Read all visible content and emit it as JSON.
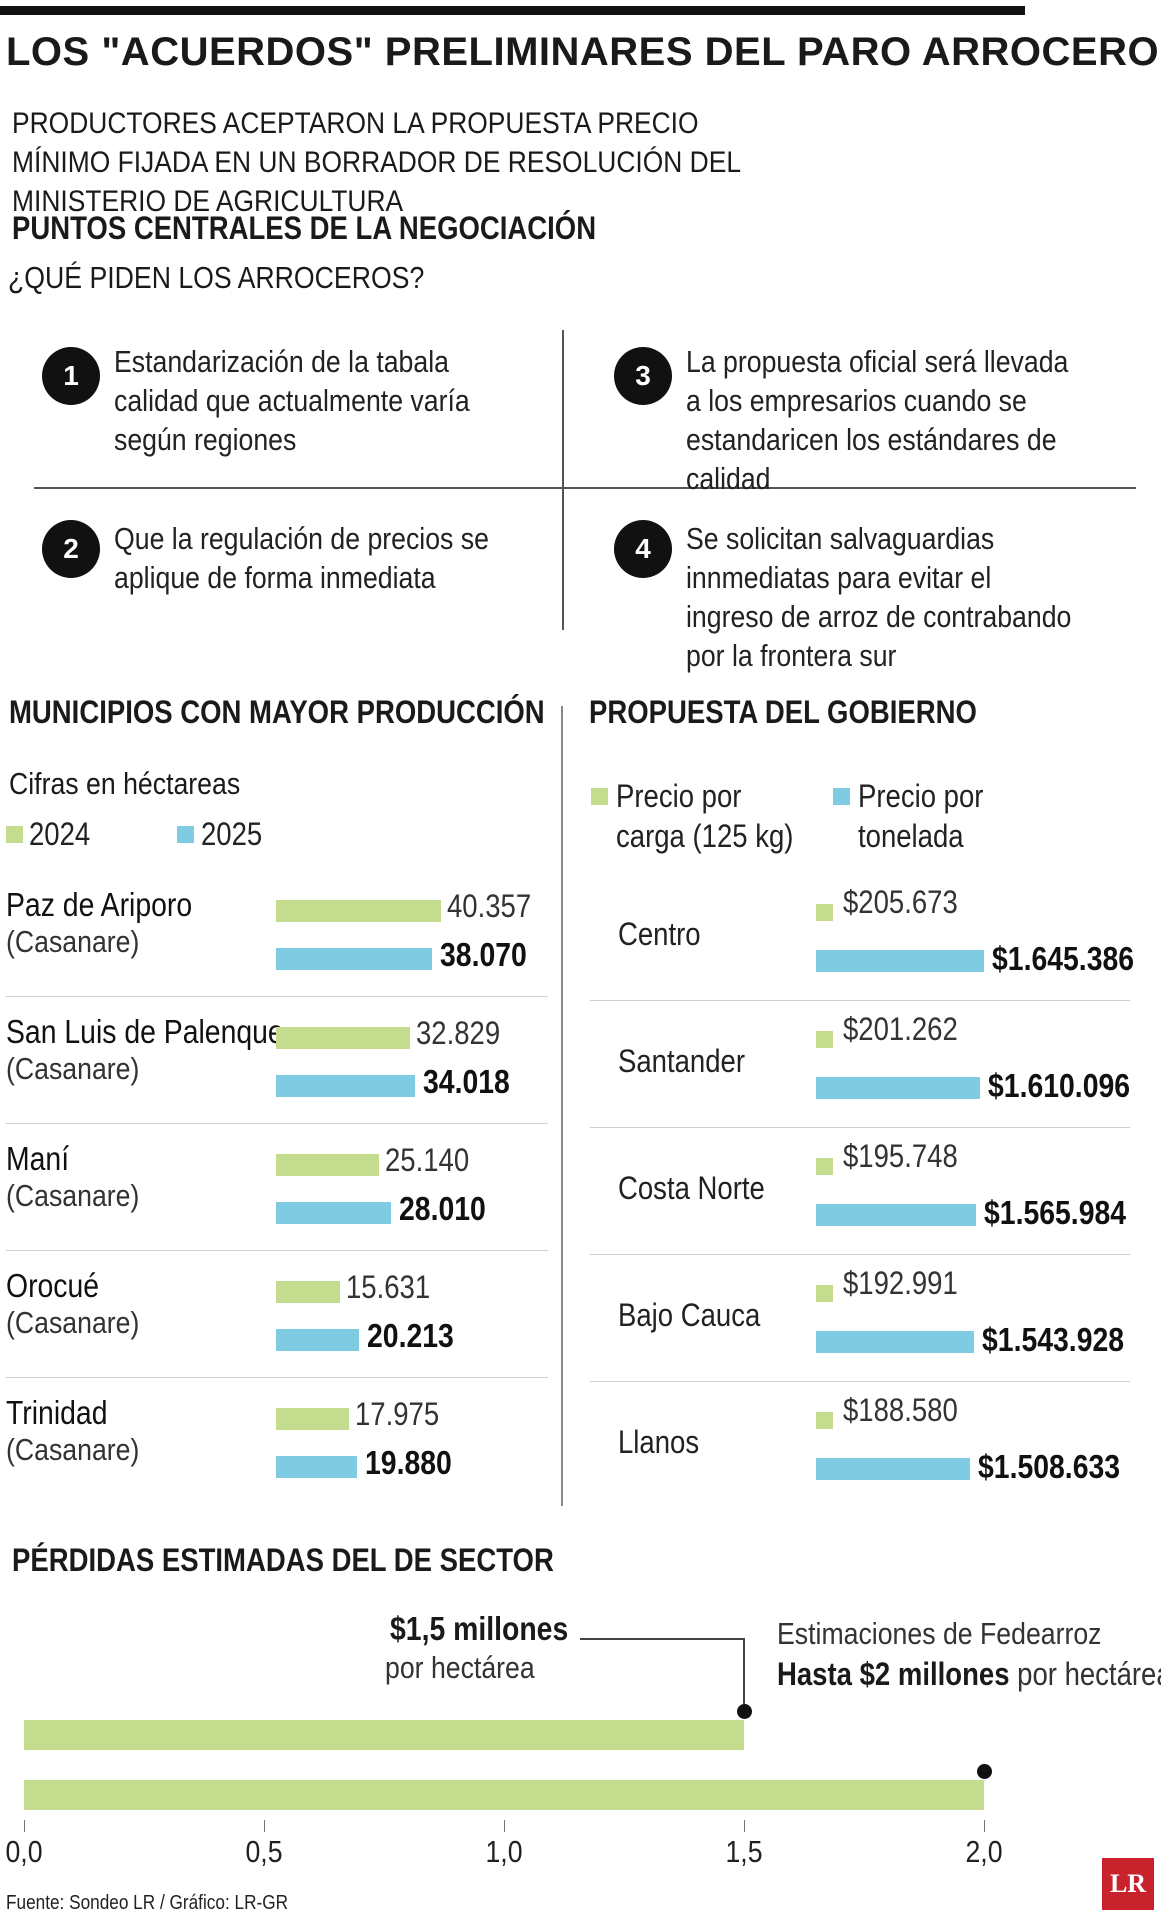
{
  "title": "LOS \"ACUERDOS\" PRELIMINARES DEL PARO ARROCERO",
  "subtitle": "PRODUCTORES ACEPTARON LA PROPUESTA PRECIO MÍNIMO FIJADA EN UN BORRADOR DE RESOLUCIÓN DEL MINISTERIO DE AGRICULTURA",
  "negotiation": {
    "heading": "PUNTOS CENTRALES DE LA NEGOCIACIÓN",
    "question": "¿QUÉ PIDEN LOS ARROCEROS?",
    "points": [
      {
        "num": "1",
        "text": "Estandarización de la tabala calidad que actualmente varía según regiones"
      },
      {
        "num": "2",
        "text": "Que la regulación de precios se aplique de forma inmediata"
      },
      {
        "num": "3",
        "text": "La propuesta oficial será llevada a los empresarios cuando se estandaricen los estándares de calidad"
      },
      {
        "num": "4",
        "text": "Se solicitan salvaguardias innmediatas para evitar el ingreso de arroz de contrabando por la frontera sur"
      }
    ]
  },
  "colors": {
    "green": "#c4dc8e",
    "blue": "#7ecbe2",
    "dark": "#111111",
    "logo_red": "#c8232c"
  },
  "source": "Fuente: Sondeo LR / Gráfico: LR-GR",
  "logo_text": "LR",
  "chart_data": [
    {
      "type": "bar",
      "orientation": "horizontal",
      "title": "MUNICIPIOS CON MAYOR PRODUCCIÓN",
      "subtitle": "Cifras en héctareas",
      "categories": [
        {
          "name": "Paz de Ariporo",
          "dept": "(Casanare)"
        },
        {
          "name": "San Luis de Palenque",
          "dept": "(Casanare)"
        },
        {
          "name": "Maní",
          "dept": "(Casanare)"
        },
        {
          "name": "Orocué",
          "dept": "(Casanare)"
        },
        {
          "name": "Trinidad",
          "dept": "(Casanare)"
        }
      ],
      "series": [
        {
          "name": "2024",
          "color": "#c4dc8e",
          "values": [
            40357,
            32829,
            25140,
            15631,
            17975
          ],
          "labels": [
            "40.357",
            "32.829",
            "25.140",
            "15.631",
            "17.975"
          ]
        },
        {
          "name": "2025",
          "color": "#7ecbe2",
          "values": [
            38070,
            34018,
            28010,
            20213,
            19880
          ],
          "labels": [
            "38.070",
            "34.018",
            "28.010",
            "20.213",
            "19.880"
          ]
        }
      ]
    },
    {
      "type": "bar",
      "orientation": "horizontal",
      "title": "PROPUESTA DEL GOBIERNO",
      "categories": [
        "Centro",
        "Santander",
        "Costa Norte",
        "Bajo Cauca",
        "Llanos"
      ],
      "series": [
        {
          "name": "Precio por carga (125 kg)",
          "color": "#c4dc8e",
          "values": [
            205673,
            201262,
            195748,
            192991,
            188580
          ],
          "labels": [
            "$205.673",
            "$201.262",
            "$195.748",
            "$192.991",
            "$188.580"
          ]
        },
        {
          "name": "Precio por tonelada",
          "color": "#7ecbe2",
          "values": [
            1645386,
            1610096,
            1565984,
            1543928,
            1508633
          ],
          "labels": [
            "$1.645.386",
            "$1.610.096",
            "$1.565.984",
            "$1.543.928",
            "$1.508.633"
          ]
        }
      ]
    },
    {
      "type": "bar",
      "orientation": "horizontal",
      "title": "PÉRDIDAS ESTIMADAS DEL DE SECTOR",
      "values": [
        1.5,
        2.0
      ],
      "xlim": [
        0,
        2.0
      ],
      "xticks": [
        "0,0",
        "0,5",
        "1,0",
        "1,5",
        "2,0"
      ],
      "annotations": [
        {
          "bold": "$1,5 millones",
          "text": "por hectárea"
        },
        {
          "lead": "Estimaciones de Fedearroz",
          "bold": "Hasta $2 millones",
          "text": "por hectárea"
        }
      ]
    }
  ]
}
